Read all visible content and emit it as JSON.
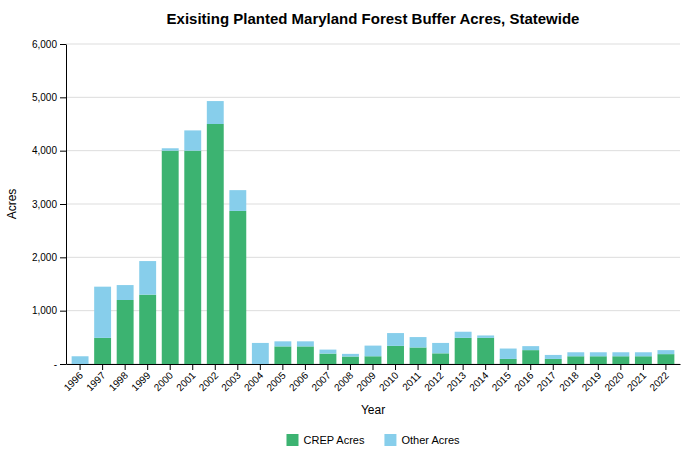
{
  "chart_data": {
    "type": "bar",
    "stacked": true,
    "title": "Exisiting Planted Maryland Forest Buffer Acres, Statewide",
    "xlabel": "Year",
    "ylabel": "Acres",
    "categories": [
      "1996",
      "1997",
      "1998",
      "1999",
      "2000",
      "2001",
      "2002",
      "2003",
      "2004",
      "2005",
      "2006",
      "2007",
      "2008",
      "2009",
      "2010",
      "2011",
      "2012",
      "2013",
      "2014",
      "2015",
      "2016",
      "2017",
      "2018",
      "2019",
      "2020",
      "2021",
      "2022"
    ],
    "series": [
      {
        "name": "CREP Acres",
        "color": "#3cb371",
        "values": [
          0,
          490,
          1200,
          1300,
          4000,
          4000,
          4500,
          2870,
          0,
          330,
          330,
          195,
          140,
          145,
          340,
          310,
          200,
          490,
          490,
          95,
          260,
          95,
          145,
          145,
          145,
          145,
          185
        ]
      },
      {
        "name": "Other Acres",
        "color": "#87ceeb",
        "values": [
          145,
          960,
          280,
          630,
          45,
          380,
          430,
          390,
          395,
          95,
          95,
          75,
          50,
          200,
          240,
          195,
          195,
          115,
          45,
          195,
          75,
          75,
          75,
          75,
          75,
          75,
          75
        ]
      }
    ],
    "ylim": [
      0,
      6000
    ],
    "yticks": [
      {
        "value": 0,
        "label": "-"
      },
      {
        "value": 1000,
        "label": "1,000"
      },
      {
        "value": 2000,
        "label": "2,000"
      },
      {
        "value": 3000,
        "label": "3,000"
      },
      {
        "value": 4000,
        "label": "4,000"
      },
      {
        "value": 5000,
        "label": "5,000"
      },
      {
        "value": 6000,
        "label": "6,000"
      }
    ],
    "grid": true,
    "legend": "bottom"
  }
}
